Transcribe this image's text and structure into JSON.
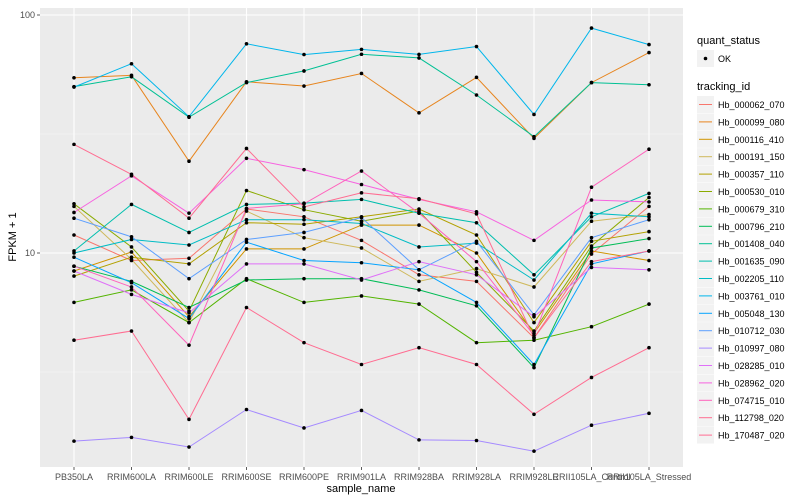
{
  "chart_data": {
    "type": "line",
    "title": "",
    "xlabel": "sample_name",
    "ylabel": "FPKM + 1",
    "yscale": "log10",
    "ylim": [
      1.3,
      140
    ],
    "yticks": [
      {
        "value": 10,
        "label": "10"
      },
      {
        "value": 100,
        "label": "100"
      }
    ],
    "grid": true,
    "categories": [
      "PB350LA",
      "RRIM600LA",
      "RRIM600LE",
      "RRIM600SE",
      "RRIM600PE",
      "RRIM901LA",
      "RRIM928BA",
      "RRIM928LA",
      "RRIM928LE",
      "RRII105LA_Control",
      "RRII105LA_Stressed"
    ],
    "legend_position": "right",
    "shape_legend": {
      "title": "quant_status",
      "entries": [
        {
          "label": "OK",
          "shape": "point"
        }
      ]
    },
    "color_legend_title": "tracking_id",
    "series": [
      {
        "name": "Hb_000062_070",
        "color": "#F8766D",
        "values": [
          11.9,
          9.3,
          9.5,
          15.3,
          14.2,
          11.3,
          8.1,
          7.6,
          4.4,
          9.9,
          15.7
        ]
      },
      {
        "name": "Hb_000099_080",
        "color": "#E7851E",
        "values": [
          54.5,
          55.8,
          24.3,
          52.4,
          50.3,
          56.8,
          38.8,
          54.7,
          30.3,
          52.0,
          69.5
        ]
      },
      {
        "name": "Hb_000116_410",
        "color": "#D09400",
        "values": [
          8.4,
          10.1,
          5.4,
          10.4,
          10.4,
          13.1,
          13.1,
          10.0,
          4.6,
          10.2,
          9.3
        ]
      },
      {
        "name": "Hb_000191_150",
        "color": "#CFB95C",
        "values": [
          15.7,
          9.4,
          5.1,
          15.0,
          11.6,
          10.5,
          7.6,
          8.6,
          7.2,
          13.6,
          14.5
        ]
      },
      {
        "name": "Hb_000357_110",
        "color": "#B2A100",
        "values": [
          8.0,
          9.6,
          9.0,
          13.4,
          13.2,
          14.2,
          15.3,
          11.9,
          5.1,
          11.2,
          12.3
        ]
      },
      {
        "name": "Hb_000530_010",
        "color": "#8BAB00",
        "values": [
          16.1,
          10.6,
          5.7,
          18.3,
          15.2,
          13.6,
          15.0,
          8.3,
          4.7,
          10.7,
          17.1
        ]
      },
      {
        "name": "Hb_000679_310",
        "color": "#53B400",
        "values": [
          6.2,
          7.0,
          5.1,
          7.8,
          6.2,
          6.6,
          6.1,
          4.2,
          4.3,
          4.9,
          6.1
        ]
      },
      {
        "name": "Hb_000796_210",
        "color": "#00BC56",
        "values": [
          8.8,
          7.6,
          5.9,
          7.7,
          7.8,
          7.8,
          7.0,
          6.0,
          3.3,
          10.5,
          11.5
        ]
      },
      {
        "name": "Hb_001408_040",
        "color": "#00C094",
        "values": [
          50.0,
          55.0,
          37.2,
          52.0,
          58.2,
          68.4,
          66.0,
          46.1,
          30.8,
          52.0,
          50.9
        ]
      },
      {
        "name": "Hb_001635_090",
        "color": "#00BFAE",
        "values": [
          10.2,
          16.0,
          12.2,
          16.0,
          16.2,
          16.8,
          14.7,
          13.4,
          8.1,
          14.2,
          17.8
        ]
      },
      {
        "name": "Hb_002205_110",
        "color": "#00BCC5",
        "values": [
          10.0,
          11.4,
          10.8,
          13.8,
          13.8,
          13.3,
          10.6,
          11.0,
          7.7,
          14.7,
          14.2
        ]
      },
      {
        "name": "Hb_003761_010",
        "color": "#00B6EB",
        "values": [
          49.8,
          62.4,
          37.4,
          75.7,
          68.2,
          71.7,
          68.3,
          73.7,
          38.2,
          88.1,
          75.1
        ]
      },
      {
        "name": "Hb_005048_130",
        "color": "#06A4FF",
        "values": [
          9.6,
          7.5,
          5.3,
          11.1,
          9.3,
          9.1,
          8.5,
          6.2,
          3.4,
          9.0,
          10.2
        ]
      },
      {
        "name": "Hb_010712_030",
        "color": "#5C9FFF",
        "values": [
          14.0,
          11.7,
          7.8,
          11.4,
          12.2,
          14.1,
          8.5,
          11.2,
          5.5,
          11.6,
          13.8
        ]
      },
      {
        "name": "Hb_010997_080",
        "color": "#A58AFF",
        "values": [
          1.62,
          1.68,
          1.53,
          2.2,
          1.84,
          2.18,
          1.64,
          1.63,
          1.47,
          1.89,
          2.12
        ]
      },
      {
        "name": "Hb_028285_010",
        "color": "#DF70F8",
        "values": [
          8.4,
          6.7,
          5.6,
          9.0,
          9.0,
          7.7,
          9.2,
          8.1,
          5.4,
          8.7,
          8.5
        ]
      },
      {
        "name": "Hb_028962_020",
        "color": "#F763E0",
        "values": [
          14.8,
          21.1,
          14.7,
          25.0,
          22.4,
          19.4,
          16.8,
          14.9,
          11.3,
          16.7,
          16.4
        ]
      },
      {
        "name": "Hb_074715_010",
        "color": "#FF62BC",
        "values": [
          8.8,
          7.2,
          4.1,
          15.4,
          16.1,
          22.1,
          14.7,
          9.2,
          4.5,
          18.9,
          27.3
        ]
      },
      {
        "name": "Hb_112798_020",
        "color": "#FF6C91",
        "values": [
          28.6,
          21.4,
          14.0,
          27.5,
          15.6,
          17.9,
          16.9,
          14.6,
          4.4,
          9.2,
          10.2
        ]
      },
      {
        "name": "Hb_170487_020",
        "color": "#FF6C91",
        "values": [
          4.3,
          4.7,
          2.0,
          5.9,
          4.2,
          3.4,
          4.0,
          3.4,
          2.1,
          3.0,
          4.0
        ]
      }
    ]
  }
}
